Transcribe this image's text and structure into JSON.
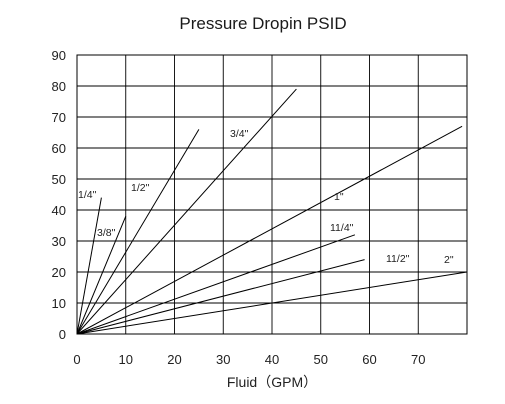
{
  "chart_data": {
    "type": "line",
    "title": "Pressure Dropin PSID",
    "xlabel": "Fluid（GPM）",
    "ylabel": "",
    "xlim": [
      0,
      80
    ],
    "ylim": [
      0,
      90
    ],
    "x_ticks": [
      "0",
      "10",
      "20",
      "30",
      "40",
      "50",
      "60",
      "70"
    ],
    "y_ticks": [
      "0",
      "10",
      "20",
      "30",
      "40",
      "50",
      "60",
      "70",
      "80",
      "90"
    ],
    "grid": true,
    "series": [
      {
        "name": "1/4\"",
        "x": [
          0,
          5
        ],
        "y": [
          0,
          44
        ]
      },
      {
        "name": "3/8\"",
        "x": [
          0,
          10
        ],
        "y": [
          0,
          38
        ]
      },
      {
        "name": "1/2\"",
        "x": [
          0,
          25
        ],
        "y": [
          0,
          66
        ]
      },
      {
        "name": "3/4\"",
        "x": [
          0,
          45
        ],
        "y": [
          0,
          79
        ]
      },
      {
        "name": "1\"",
        "x": [
          0,
          79
        ],
        "y": [
          0,
          67
        ]
      },
      {
        "name": "11/4\"",
        "x": [
          0,
          57
        ],
        "y": [
          0,
          32
        ]
      },
      {
        "name": "11/2\"",
        "x": [
          0,
          59
        ],
        "y": [
          0,
          24
        ]
      },
      {
        "name": "2\"",
        "x": [
          0,
          80
        ],
        "y": [
          0,
          20
        ]
      }
    ]
  }
}
